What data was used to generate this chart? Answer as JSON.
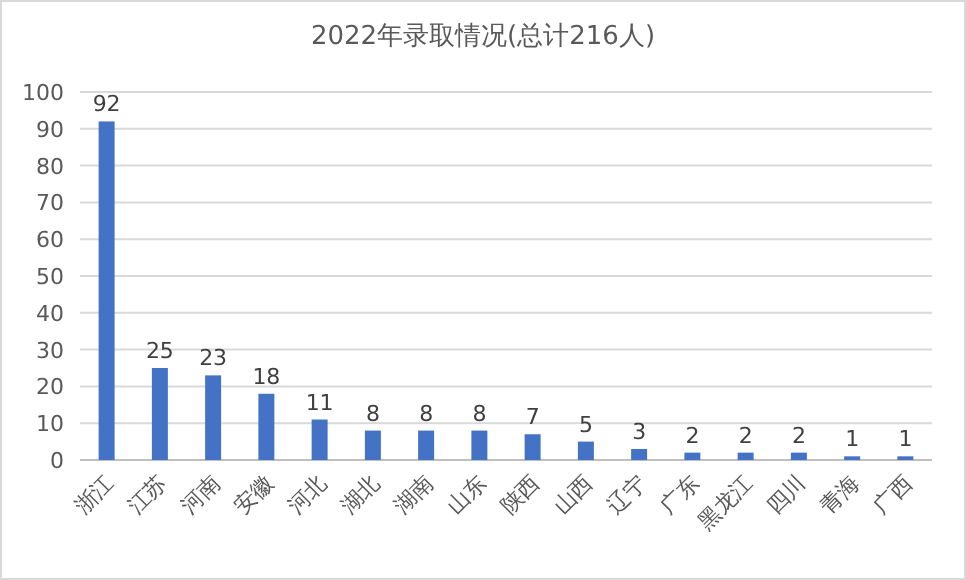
{
  "chart_data": {
    "type": "bar",
    "title": "2022年录取情况(总计216人)",
    "categories": [
      "浙江",
      "江苏",
      "河南",
      "安徽",
      "河北",
      "湖北",
      "湖南",
      "山东",
      "陕西",
      "山西",
      "辽宁",
      "广东",
      "黑龙江",
      "四川",
      "青海",
      "广西"
    ],
    "values": [
      92,
      25,
      23,
      18,
      11,
      8,
      8,
      8,
      7,
      5,
      3,
      2,
      2,
      2,
      1,
      1
    ],
    "color": "#4472c4",
    "ylim": [
      0,
      100
    ],
    "yticks": [
      0,
      10,
      20,
      30,
      40,
      50,
      60,
      70,
      80,
      90,
      100
    ],
    "grid": "y",
    "data_labels": true
  }
}
